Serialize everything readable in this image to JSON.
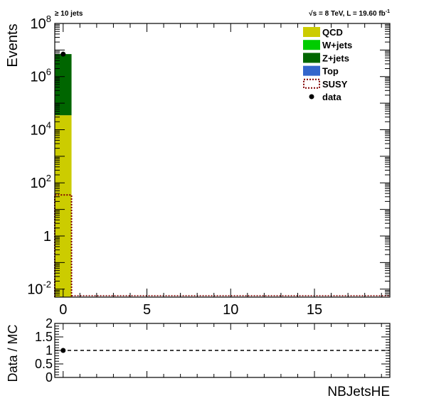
{
  "header": {
    "left_label": "≥ 10 jets",
    "right_label_sqrt": "√s",
    "right_label_rest": " = 8 TeV, L = 19.60 fb",
    "right_label_sup": "-1"
  },
  "colors": {
    "QCD": "#cccc00",
    "W+jets": "#00cc00",
    "Z+jets": "#006600",
    "Top": "#3366cc",
    "SUSY": "#800000",
    "data": "#000000"
  },
  "chart_data": [
    {
      "type": "bar",
      "subtype": "stacked-histogram",
      "ylabel": "Events",
      "yscale": "log",
      "ylim": [
        0.005,
        100000000
      ],
      "xlim": [
        -0.5,
        19.5
      ],
      "xticks": [
        "0",
        "5",
        "10",
        "15"
      ],
      "yticks": [
        {
          "v": 0.01,
          "base": "10",
          "exp": "-2"
        },
        {
          "v": 1,
          "base": "1",
          "exp": ""
        },
        {
          "v": 100,
          "base": "10",
          "exp": "2"
        },
        {
          "v": 10000,
          "base": "10",
          "exp": "4"
        },
        {
          "v": 1000000,
          "base": "10",
          "exp": "6"
        },
        {
          "v": 100000000,
          "base": "10",
          "exp": "8"
        }
      ],
      "bins": [
        {
          "x": 0,
          "label": "0"
        }
      ],
      "series": [
        {
          "name": "QCD",
          "values": [
            35000
          ]
        },
        {
          "name": "W+jets",
          "values": [
            0
          ]
        },
        {
          "name": "Z+jets",
          "values": [
            7000000
          ]
        },
        {
          "name": "Top",
          "values": [
            0
          ]
        }
      ],
      "signal": {
        "name": "SUSY",
        "values": [
          35
        ]
      },
      "data_points": {
        "name": "data",
        "x": [
          0
        ],
        "y": [
          7000000
        ]
      },
      "legend": {
        "position": "top-right",
        "entries": [
          {
            "label": "QCD",
            "style": "fill",
            "color_key": "QCD"
          },
          {
            "label": "W+jets",
            "style": "fill",
            "color_key": "W+jets"
          },
          {
            "label": "Z+jets",
            "style": "fill",
            "color_key": "Z+jets"
          },
          {
            "label": "Top",
            "style": "fill",
            "color_key": "Top"
          },
          {
            "label": "SUSY",
            "style": "dashed-box",
            "color_key": "SUSY"
          },
          {
            "label": "data",
            "style": "marker",
            "color_key": "data"
          }
        ]
      }
    },
    {
      "type": "scatter",
      "subtype": "ratio",
      "ylabel": "Data / MC",
      "xlabel": "NBJetsHE",
      "ylim": [
        0,
        2
      ],
      "xlim": [
        -0.5,
        19.5
      ],
      "yticks": [
        "0",
        "0.5",
        "1",
        "1.5",
        "2"
      ],
      "reference_line": 1,
      "points": [
        {
          "x": 0,
          "y": 1.0
        }
      ]
    }
  ]
}
